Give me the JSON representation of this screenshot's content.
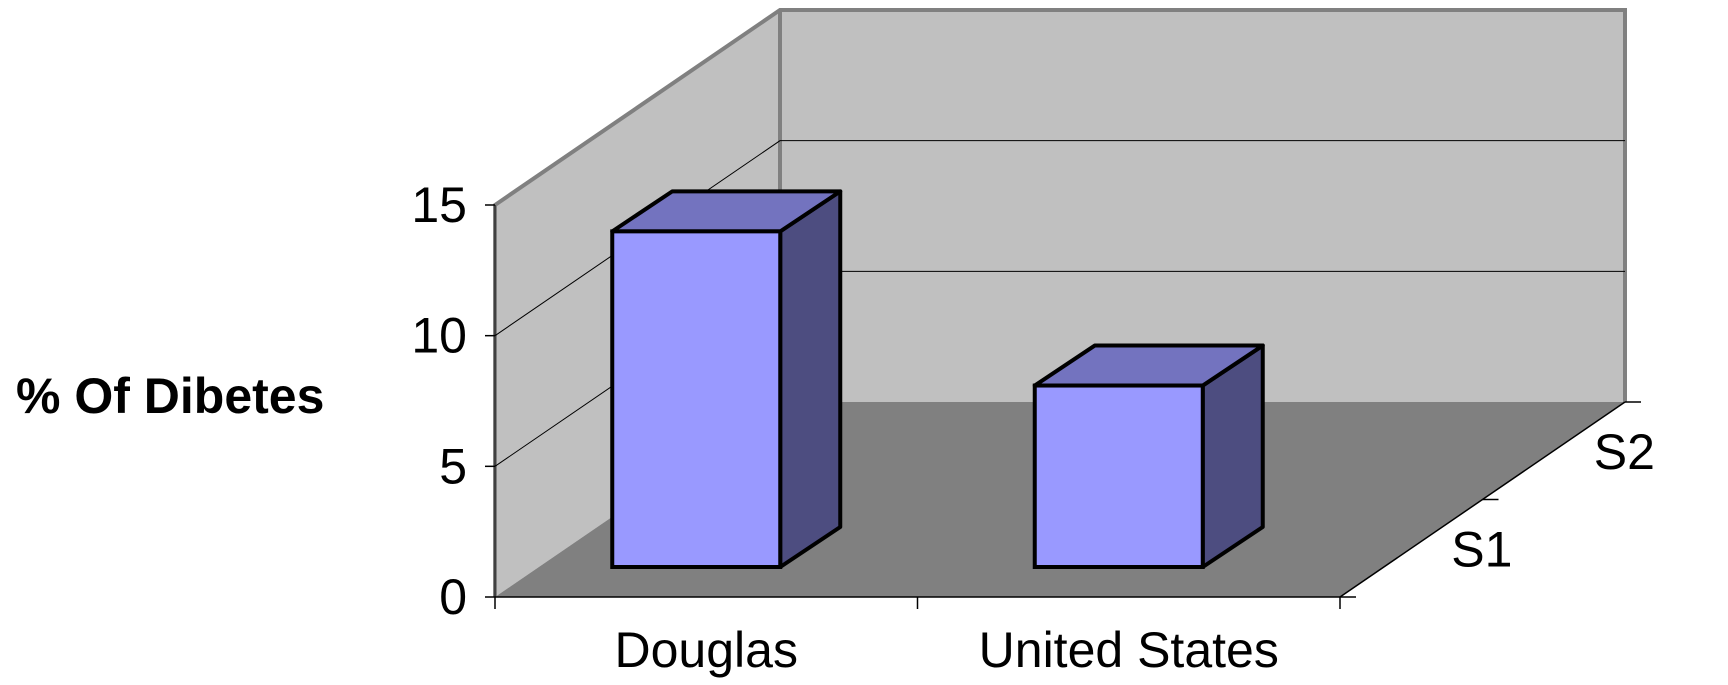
{
  "chart_data": {
    "type": "bar",
    "title": "",
    "xlabel": "",
    "ylabel": "% Of Dibetes",
    "categories": [
      "Douglas",
      "United States"
    ],
    "series_axis": [
      "S1",
      "S2"
    ],
    "series": [
      {
        "values": [
          13.8,
          7.9
        ]
      }
    ],
    "ylim": [
      0,
      15
    ],
    "yticks": [
      0,
      5,
      10,
      15
    ],
    "grid": true,
    "three_d": true,
    "colors": {
      "bar_front": "#9999ff",
      "bar_top": "#7373bf",
      "bar_side": "#4d4d80",
      "walls": "#c0c0c0",
      "floor": "#808080",
      "wall_edge": "#808080",
      "gridline": "#000000"
    }
  }
}
